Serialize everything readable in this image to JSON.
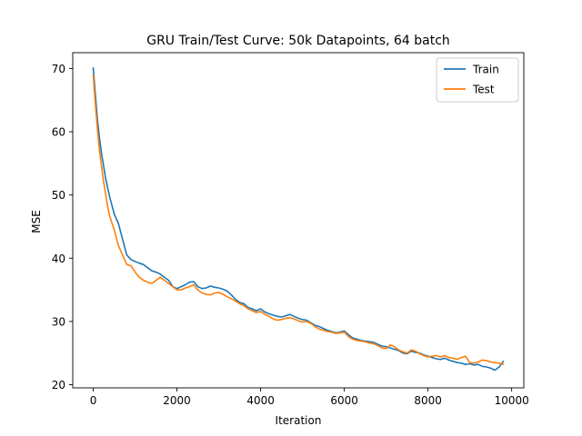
{
  "chart_data": {
    "type": "line",
    "title": "GRU Train/Test Curve: 50k Datapoints, 64 batch",
    "xlabel": "Iteration",
    "ylabel": "MSE",
    "xlim": [
      -490,
      10290
    ],
    "ylim": [
      19.5,
      72.5
    ],
    "xticks": [
      0,
      2000,
      4000,
      6000,
      8000,
      10000
    ],
    "yticks": [
      20,
      30,
      40,
      50,
      60,
      70
    ],
    "grid": false,
    "legend_position": "top-right",
    "series": [
      {
        "name": "Train",
        "color": "#1f77b4",
        "x": [
          0,
          50,
          100,
          150,
          200,
          250,
          300,
          350,
          400,
          500,
          600,
          700,
          800,
          900,
          1000,
          1100,
          1200,
          1300,
          1400,
          1500,
          1600,
          1700,
          1800,
          1900,
          2000,
          2100,
          2200,
          2300,
          2400,
          2500,
          2600,
          2700,
          2800,
          2900,
          3000,
          3100,
          3200,
          3300,
          3400,
          3500,
          3600,
          3700,
          3800,
          3900,
          4000,
          4100,
          4200,
          4300,
          4400,
          4500,
          4600,
          4700,
          4800,
          4900,
          5000,
          5100,
          5200,
          5300,
          5400,
          5500,
          5600,
          5700,
          5800,
          5900,
          6000,
          6100,
          6200,
          6300,
          6400,
          6500,
          6600,
          6700,
          6800,
          6900,
          7000,
          7100,
          7200,
          7300,
          7400,
          7500,
          7600,
          7700,
          7800,
          7900,
          8000,
          8100,
          8200,
          8300,
          8400,
          8500,
          8600,
          8700,
          8800,
          8900,
          9000,
          9100,
          9200,
          9300,
          9400,
          9500,
          9600,
          9700,
          9800
        ],
        "y": [
          70.1,
          66.0,
          62.0,
          59.0,
          56.5,
          54.5,
          52.5,
          51.0,
          49.5,
          47.0,
          45.5,
          43.0,
          40.5,
          39.8,
          39.5,
          39.2,
          39.0,
          38.5,
          38.0,
          37.8,
          37.5,
          37.0,
          36.5,
          35.5,
          35.2,
          35.5,
          35.8,
          36.2,
          36.3,
          35.5,
          35.2,
          35.3,
          35.6,
          35.4,
          35.3,
          35.1,
          34.8,
          34.2,
          33.5,
          33.0,
          32.8,
          32.2,
          32.0,
          31.7,
          32.0,
          31.5,
          31.2,
          31.0,
          30.8,
          30.7,
          30.9,
          31.1,
          30.8,
          30.5,
          30.3,
          30.2,
          29.8,
          29.4,
          29.2,
          28.9,
          28.6,
          28.4,
          28.2,
          28.3,
          28.5,
          27.9,
          27.4,
          27.2,
          27.0,
          26.9,
          26.8,
          26.7,
          26.4,
          26.1,
          26.0,
          25.8,
          25.6,
          25.4,
          25.0,
          24.9,
          25.3,
          25.1,
          25.0,
          24.7,
          24.5,
          24.3,
          24.1,
          24.0,
          24.2,
          23.9,
          23.7,
          23.5,
          23.4,
          23.2,
          23.3,
          23.1,
          23.2,
          22.9,
          22.8,
          22.6,
          22.3,
          22.8,
          23.7
        ]
      },
      {
        "name": "Test",
        "color": "#ff7f0e",
        "x": [
          0,
          50,
          100,
          150,
          200,
          250,
          300,
          350,
          400,
          500,
          600,
          700,
          800,
          900,
          1000,
          1100,
          1200,
          1300,
          1400,
          1500,
          1600,
          1700,
          1800,
          1900,
          2000,
          2100,
          2200,
          2300,
          2400,
          2500,
          2600,
          2700,
          2800,
          2900,
          3000,
          3100,
          3200,
          3300,
          3400,
          3500,
          3600,
          3700,
          3800,
          3900,
          4000,
          4100,
          4200,
          4300,
          4400,
          4500,
          4600,
          4700,
          4800,
          4900,
          5000,
          5100,
          5200,
          5300,
          5400,
          5500,
          5600,
          5700,
          5800,
          5900,
          6000,
          6100,
          6200,
          6300,
          6400,
          6500,
          6600,
          6700,
          6800,
          6900,
          7000,
          7100,
          7200,
          7300,
          7400,
          7500,
          7600,
          7700,
          7800,
          7900,
          8000,
          8100,
          8200,
          8300,
          8400,
          8500,
          8600,
          8700,
          8800,
          8900,
          9000,
          9100,
          9200,
          9300,
          9400,
          9500,
          9600,
          9700,
          9800
        ],
        "y": [
          69.0,
          64.5,
          60.5,
          57.0,
          54.5,
          52.0,
          50.0,
          48.0,
          46.5,
          44.5,
          42.0,
          40.5,
          39.0,
          38.8,
          37.8,
          37.0,
          36.5,
          36.2,
          36.0,
          36.5,
          37.0,
          36.5,
          36.0,
          35.5,
          35.0,
          35.0,
          35.3,
          35.5,
          35.8,
          35.0,
          34.5,
          34.3,
          34.2,
          34.5,
          34.6,
          34.3,
          33.9,
          33.6,
          33.2,
          32.8,
          32.5,
          32.0,
          31.7,
          31.4,
          31.6,
          31.1,
          30.8,
          30.4,
          30.2,
          30.3,
          30.5,
          30.6,
          30.4,
          30.1,
          29.9,
          30.0,
          29.7,
          29.2,
          28.8,
          28.6,
          28.4,
          28.3,
          28.1,
          28.2,
          28.3,
          27.6,
          27.2,
          27.0,
          26.9,
          26.8,
          26.6,
          26.5,
          26.2,
          25.8,
          25.7,
          26.3,
          26.0,
          25.5,
          25.2,
          25.0,
          25.5,
          25.3,
          24.9,
          24.6,
          24.4,
          24.5,
          24.6,
          24.4,
          24.6,
          24.3,
          24.2,
          24.0,
          24.3,
          24.5,
          23.5,
          23.4,
          23.6,
          23.9,
          23.8,
          23.6,
          23.5,
          23.4,
          23.2
        ]
      }
    ]
  }
}
